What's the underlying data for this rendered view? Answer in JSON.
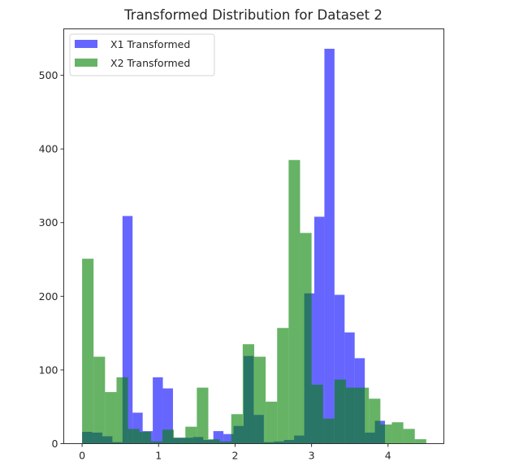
{
  "chart_data": {
    "type": "bar",
    "subtype": "histogram",
    "title": "Transformed Distribution for Dataset 2",
    "xlabel": "",
    "ylabel": "",
    "xlim": [
      -0.24,
      4.73
    ],
    "ylim": [
      0,
      563
    ],
    "xticks": [
      0,
      1,
      2,
      3,
      4
    ],
    "yticks": [
      0,
      100,
      200,
      300,
      400,
      500
    ],
    "grid": false,
    "legend_position": "upper left",
    "series": [
      {
        "name": "X1 Transformed",
        "color": "#0000ff",
        "alpha": 0.6,
        "bin_start": 0.0,
        "bin_width": 0.132,
        "values": [
          16,
          15,
          10,
          2,
          309,
          42,
          17,
          90,
          75,
          8,
          8,
          9,
          5,
          17,
          13,
          24,
          119,
          39,
          2,
          3,
          5,
          11,
          204,
          308,
          536,
          202,
          151,
          116,
          15,
          31
        ]
      },
      {
        "name": "X2 Transformed",
        "color": "#008000",
        "alpha": 0.6,
        "bin_start": 0.0,
        "bin_width": 0.15,
        "values": [
          251,
          118,
          70,
          90,
          20,
          16,
          3,
          19,
          8,
          23,
          76,
          6,
          3,
          40,
          135,
          118,
          57,
          157,
          385,
          286,
          80,
          34,
          87,
          76,
          76,
          61,
          26,
          29,
          20,
          6
        ]
      }
    ]
  }
}
